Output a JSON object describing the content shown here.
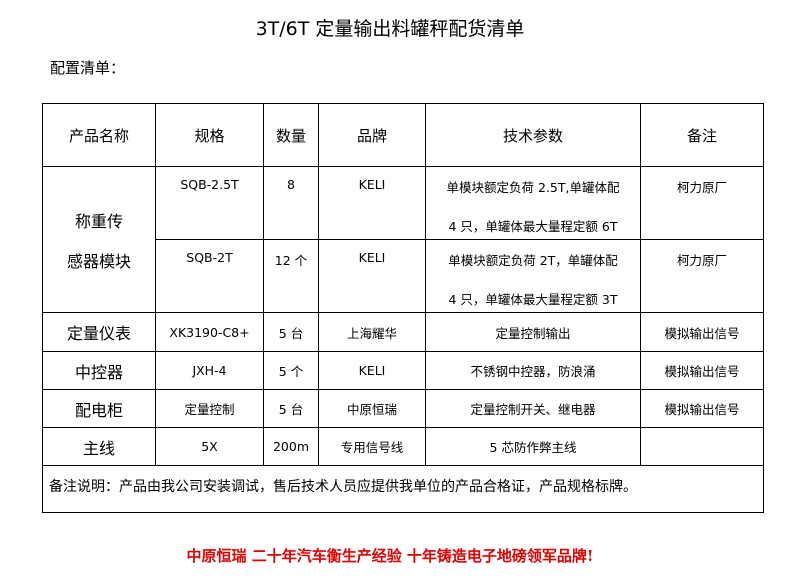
{
  "title": "3T/6T 定量输出料罐秤配货清单",
  "subtitle": "配置清单：",
  "headers": [
    "产品名称",
    "规格",
    "数量",
    "品牌",
    "技术参数",
    "备注"
  ],
  "sensor_group": {
    "name_line1": "称重传",
    "name_line2": "感器模块"
  },
  "sensor_rows": [
    {
      "spec": "SQB-2.5T",
      "qty": "8",
      "brand": "KELI",
      "tech1": "单模块额定负荷 2.5T,单罐体配",
      "tech2": "4 只，单罐体最大量程定额 6T",
      "note": "柯力原厂"
    },
    {
      "spec": "SQB-2T",
      "qty": "12 个",
      "brand": "KELI",
      "tech1": "单模块额定负荷 2T，单罐体配",
      "tech2": "4 只，单罐体最大量程定额 3T",
      "note": "柯力原厂"
    }
  ],
  "rows": [
    {
      "name": "定量仪表",
      "spec": "XK3190-C8+",
      "qty": "5 台",
      "brand": "上海耀华",
      "tech": "定量控制输出",
      "note": "模拟输出信号"
    },
    {
      "name": "中控器",
      "spec": "JXH-4",
      "qty": "5 个",
      "brand": "KELI",
      "tech": "不锈钢中控器，防浪涌",
      "note": "模拟输出信号"
    },
    {
      "name": "配电柜",
      "spec": "定量控制",
      "qty": "5 台",
      "brand": "中原恒瑞",
      "tech": "定量控制开关、继电器",
      "note": "模拟输出信号"
    },
    {
      "name": "主线",
      "spec": "5X",
      "qty": "200m",
      "brand": "专用信号线",
      "tech": "5 芯防作弊主线",
      "note": ""
    }
  ],
  "remarks": "备注说明：产品由我公司安装调试，售后技术人员应提供我单位的产品合格证，产品规格标牌。",
  "footer": "中原恒瑞 二十年汽车衡生产经验 十年铸造电子地磅领军品牌!",
  "colors": {
    "footer": "#e00000"
  }
}
